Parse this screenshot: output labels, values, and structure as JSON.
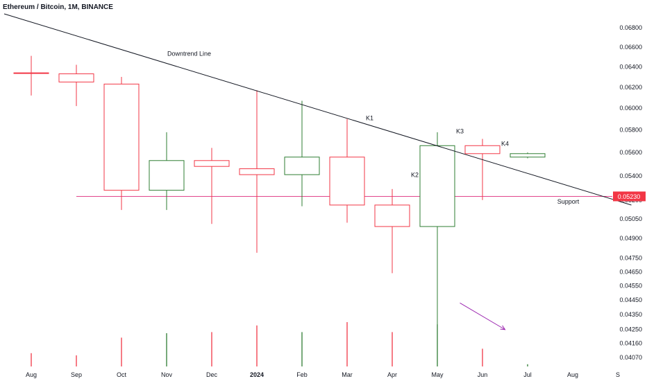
{
  "header": {
    "title": "Ethereum / Bitcoin, 1M, BINANCE"
  },
  "colors": {
    "up": "#089981",
    "up_body": "#2e7d32",
    "down": "#f23645",
    "trend": "#131722",
    "support": "#f7525f",
    "support_line": "#e1458a",
    "arrow": "#9c27b0",
    "price_tag": "#f23645"
  },
  "chart_data": {
    "type": "candlestick",
    "title": "Ethereum / Bitcoin, 1M, BINANCE",
    "y_scale": "log",
    "ylim": [
      0.0403,
      0.0695
    ],
    "y_ticks": [
      "0.06800",
      "0.06600",
      "0.06400",
      "0.06200",
      "0.06000",
      "0.05800",
      "0.05600",
      "0.05400",
      "0.05200",
      "0.05050",
      "0.04900",
      "0.04750",
      "0.04650",
      "0.04550",
      "0.04450",
      "0.04350",
      "0.04250",
      "0.04160",
      "0.04070"
    ],
    "x_ticks": [
      "Aug",
      "Sep",
      "Oct",
      "Nov",
      "Dec",
      "2024",
      "Feb",
      "Mar",
      "Apr",
      "May",
      "Jun",
      "Jul",
      "Aug",
      "S"
    ],
    "candles": [
      {
        "month": "Jul",
        "open": 0.0634,
        "high": 0.0634,
        "low": 0.0634,
        "close": 0.0634,
        "dir": "up"
      },
      {
        "month": "Aug",
        "open": 0.0634,
        "high": 0.0651,
        "low": 0.0612,
        "close": 0.0634,
        "dir": "down"
      },
      {
        "month": "Sep",
        "open": 0.0633,
        "high": 0.0642,
        "low": 0.0602,
        "close": 0.0625,
        "dir": "down"
      },
      {
        "month": "Oct",
        "open": 0.0623,
        "high": 0.063,
        "low": 0.0512,
        "close": 0.0528,
        "dir": "down"
      },
      {
        "month": "Nov",
        "open": 0.0528,
        "high": 0.0578,
        "low": 0.0512,
        "close": 0.0553,
        "dir": "up"
      },
      {
        "month": "Dec",
        "open": 0.0553,
        "high": 0.0564,
        "low": 0.0501,
        "close": 0.0548,
        "dir": "down"
      },
      {
        "month": "2024",
        "open": 0.0546,
        "high": 0.0617,
        "low": 0.0479,
        "close": 0.0541,
        "dir": "down"
      },
      {
        "month": "Feb",
        "open": 0.0541,
        "high": 0.0607,
        "low": 0.0515,
        "close": 0.0556,
        "dir": "up"
      },
      {
        "month": "Mar",
        "open": 0.0556,
        "high": 0.059,
        "low": 0.0502,
        "close": 0.0516,
        "dir": "down"
      },
      {
        "month": "Apr",
        "open": 0.0516,
        "high": 0.0529,
        "low": 0.0464,
        "close": 0.0499,
        "dir": "down"
      },
      {
        "month": "May",
        "open": 0.0499,
        "high": 0.0578,
        "low": 0.0408,
        "close": 0.0566,
        "dir": "up"
      },
      {
        "month": "Jun",
        "open": 0.0566,
        "high": 0.0572,
        "low": 0.052,
        "close": 0.0559,
        "dir": "down"
      },
      {
        "month": "Jul",
        "open": 0.0556,
        "high": 0.056,
        "low": 0.0555,
        "close": 0.0559,
        "dir": "up"
      }
    ],
    "volume_max": 1.0,
    "volumes": [
      {
        "month": "Aug",
        "value": 0.12,
        "dir": "down"
      },
      {
        "month": "Sep",
        "value": 0.1,
        "dir": "down"
      },
      {
        "month": "Oct",
        "value": 0.26,
        "dir": "down"
      },
      {
        "month": "Nov",
        "value": 0.3,
        "dir": "up"
      },
      {
        "month": "Dec",
        "value": 0.31,
        "dir": "down"
      },
      {
        "month": "2024",
        "value": 0.37,
        "dir": "down"
      },
      {
        "month": "Feb",
        "value": 0.31,
        "dir": "up"
      },
      {
        "month": "Mar",
        "value": 0.4,
        "dir": "down"
      },
      {
        "month": "Apr",
        "value": 0.31,
        "dir": "down"
      },
      {
        "month": "May",
        "value": 0.38,
        "dir": "up"
      },
      {
        "month": "Jun",
        "value": 0.16,
        "dir": "down"
      },
      {
        "month": "Jul",
        "value": 0.02,
        "dir": "up"
      }
    ],
    "downtrend_line": {
      "start": {
        "month_index": -0.6,
        "price": 0.0695
      },
      "end": {
        "month_index": 13.3,
        "price": 0.0516
      }
    },
    "support_level": 0.0523,
    "current_price_label": "0.05230",
    "annotations": [
      {
        "text": "Downtrend Line",
        "month_index": 3.5,
        "price": 0.0651
      },
      {
        "text": "K1",
        "month_index": 7.5,
        "price": 0.0589
      },
      {
        "text": "K2",
        "month_index": 8.5,
        "price": 0.0539
      },
      {
        "text": "K3",
        "month_index": 9.5,
        "price": 0.0577
      },
      {
        "text": "K4",
        "month_index": 10.5,
        "price": 0.0566
      },
      {
        "text": "Support",
        "month_index": 11.9,
        "price": 0.0517
      }
    ],
    "arrow": {
      "from": {
        "month_index": 9.5,
        "price": 0.0443
      },
      "to": {
        "month_index": 10.5,
        "price": 0.0425
      }
    }
  }
}
